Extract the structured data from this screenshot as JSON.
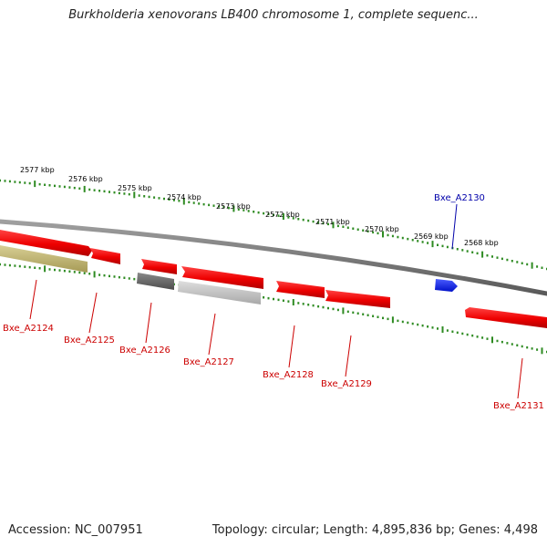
{
  "header": {
    "title": "Burkholderia xenovorans LB400 chromosome 1, complete sequenc..."
  },
  "footer": {
    "accession": "Accession: NC_007951",
    "summary": "Topology: circular; Length: 4,895,836 bp; Genes: 4,498"
  },
  "ruler": {
    "unit": "kbp",
    "ticks": [
      "2577 kbp",
      "2576 kbp",
      "2575 kbp",
      "2574 kbp",
      "2573 kbp",
      "2572 kbp",
      "2571 kbp",
      "2570 kbp",
      "2569 kbp",
      "2568 kbp"
    ]
  },
  "genes": [
    {
      "name": "Bxe_A2124",
      "color": "#cc0000"
    },
    {
      "name": "Bxe_A2125",
      "color": "#cc0000"
    },
    {
      "name": "Bxe_A2126",
      "color": "#cc0000"
    },
    {
      "name": "Bxe_A2127",
      "color": "#cc0000"
    },
    {
      "name": "Bxe_A2128",
      "color": "#cc0000"
    },
    {
      "name": "Bxe_A2129",
      "color": "#cc0000"
    },
    {
      "name": "Bxe_A2130",
      "color": "#0000aa"
    },
    {
      "name": "Bxe_A2131",
      "color": "#cc0000"
    }
  ],
  "colors": {
    "backbone": "#808080",
    "tick": "#2e8b22",
    "feature_red": "#ee1111",
    "feature_blue": "#1a2fe8",
    "feature_olive": "#bdb373",
    "feature_dark_gray": "#6e6e6e",
    "feature_light_gray": "#c4c4c4"
  }
}
